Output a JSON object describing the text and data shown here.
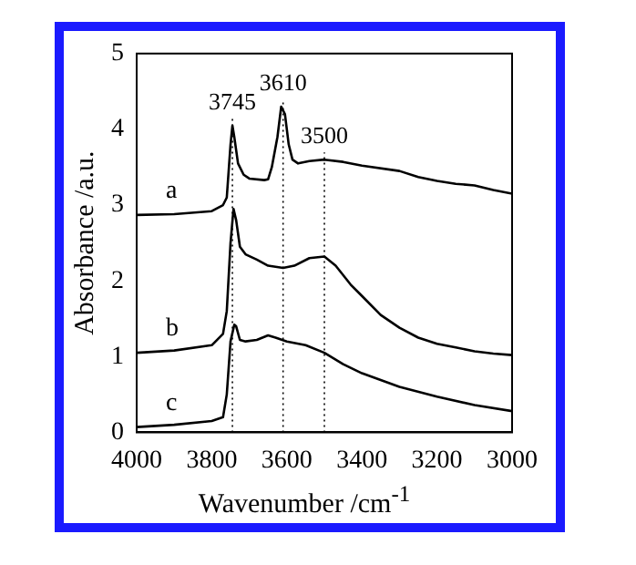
{
  "chart_data": {
    "type": "line",
    "xlabel": "Wavenumber /cm$^{-1}$",
    "ylabel": "Absorbance /a.u.",
    "xlim": [
      4000,
      3000
    ],
    "xticks": [
      4000,
      3800,
      3600,
      3400,
      3200,
      3000
    ],
    "ylim": [
      0,
      5
    ],
    "yticks": [
      0,
      1,
      2,
      3,
      4,
      5
    ],
    "grid": false,
    "legend": false,
    "marker": "none",
    "line_style": "solid",
    "series": [
      {
        "name": "a",
        "color": "#000000",
        "x": [
          4000,
          3900,
          3800,
          3770,
          3760,
          3750,
          3745,
          3740,
          3730,
          3715,
          3700,
          3660,
          3650,
          3640,
          3625,
          3615,
          3605,
          3595,
          3585,
          3570,
          3540,
          3500,
          3450,
          3400,
          3300,
          3250,
          3200,
          3150,
          3100,
          3050,
          3000
        ],
        "values": [
          2.87,
          2.88,
          2.92,
          3.0,
          3.1,
          3.8,
          4.05,
          3.9,
          3.55,
          3.4,
          3.35,
          3.33,
          3.34,
          3.5,
          3.9,
          4.3,
          4.2,
          3.8,
          3.6,
          3.55,
          3.58,
          3.6,
          3.57,
          3.52,
          3.45,
          3.37,
          3.32,
          3.28,
          3.26,
          3.2,
          3.15
        ]
      },
      {
        "name": "b",
        "color": "#000000",
        "x": [
          4000,
          3900,
          3800,
          3770,
          3760,
          3750,
          3742,
          3735,
          3725,
          3710,
          3680,
          3650,
          3610,
          3580,
          3540,
          3500,
          3470,
          3430,
          3400,
          3350,
          3300,
          3250,
          3200,
          3150,
          3100,
          3050,
          3000
        ],
        "values": [
          1.05,
          1.08,
          1.15,
          1.3,
          1.6,
          2.5,
          2.95,
          2.8,
          2.45,
          2.35,
          2.28,
          2.2,
          2.17,
          2.2,
          2.3,
          2.32,
          2.2,
          1.95,
          1.8,
          1.55,
          1.38,
          1.25,
          1.17,
          1.12,
          1.07,
          1.04,
          1.02
        ]
      },
      {
        "name": "c",
        "color": "#000000",
        "x": [
          4000,
          3900,
          3800,
          3770,
          3760,
          3750,
          3740,
          3735,
          3725,
          3710,
          3680,
          3650,
          3630,
          3600,
          3550,
          3500,
          3450,
          3400,
          3300,
          3200,
          3100,
          3000
        ],
        "values": [
          0.07,
          0.1,
          0.15,
          0.2,
          0.5,
          1.2,
          1.42,
          1.4,
          1.22,
          1.2,
          1.22,
          1.28,
          1.25,
          1.2,
          1.15,
          1.05,
          0.9,
          0.78,
          0.6,
          0.47,
          0.36,
          0.28
        ]
      }
    ],
    "ref_lines": [
      {
        "axis": "x",
        "value": 3745,
        "label": "3745",
        "line_style": "dotted"
      },
      {
        "axis": "x",
        "value": 3610,
        "label": "3610",
        "line_style": "dotted"
      },
      {
        "axis": "x",
        "value": 3500,
        "label": "3500",
        "line_style": "dotted"
      }
    ]
  }
}
